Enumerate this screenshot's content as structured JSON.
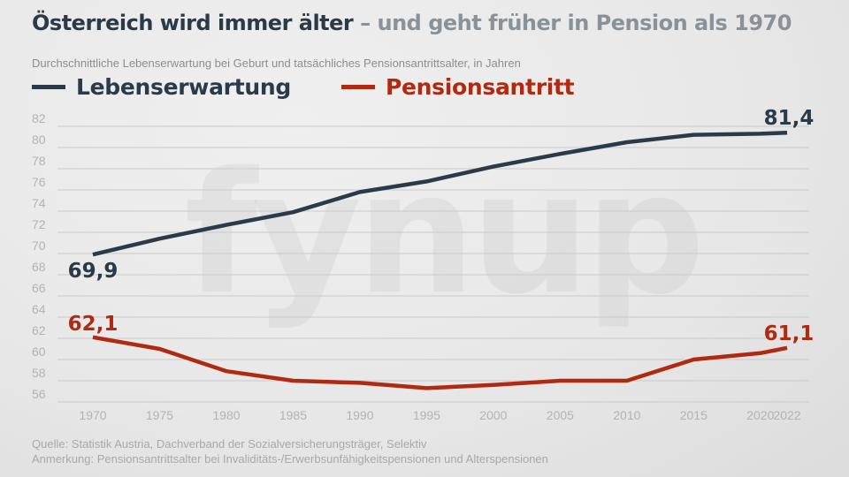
{
  "header": {
    "title_main": "Österreich wird immer älter",
    "title_sub": " – und geht früher in Pension als 1970",
    "subtitle": "Durchschnittliche Lebenserwartung bei Geburt und tatsächliches Pensionsantrittsalter, in Jahren"
  },
  "legend": [
    {
      "label": "Lebenserwartung",
      "color": "#2b3a48"
    },
    {
      "label": "Pensionsantritt",
      "color": "#b02a12"
    }
  ],
  "watermark": "fynup",
  "footer": {
    "source": "Quelle: Statistik Austria, Dachverband der Sozialversicherungsträger, Selektiv",
    "note": "Anmerkung: Pensionsantrittsalter bei Invaliditäts-/Erwerbsunfähigkeitspensionen und Alterspensionen"
  },
  "chart_data": {
    "type": "line",
    "title": "Österreich wird immer älter – und geht früher in Pension als 1970",
    "subtitle": "Durchschnittliche Lebenserwartung bei Geburt und tatsächliches Pensionsantrittsalter, in Jahren",
    "xlabel": "",
    "ylabel": "",
    "x": [
      1970,
      1975,
      1980,
      1985,
      1990,
      1995,
      2000,
      2005,
      2010,
      2015,
      2020,
      2022
    ],
    "x_tick_labels": [
      "1970",
      "1975",
      "1980",
      "1985",
      "1990",
      "1995",
      "2000",
      "2005",
      "2010",
      "2015",
      "2020",
      "2022"
    ],
    "ylim": [
      56,
      82
    ],
    "y_ticks": [
      82,
      80,
      78,
      76,
      74,
      72,
      70,
      68,
      66,
      64,
      62,
      60,
      58,
      56
    ],
    "y_tick_labels": [
      "82",
      "80",
      "78",
      "76",
      "74",
      "72",
      "70",
      "68",
      "66",
      "64",
      "62",
      "60",
      "58",
      "56"
    ],
    "grid": true,
    "legend_position": "top-left",
    "series": [
      {
        "name": "Lebenserwartung",
        "color": "#2b3a48",
        "values": [
          69.9,
          71.4,
          72.7,
          73.9,
          75.8,
          76.8,
          78.2,
          79.4,
          80.5,
          81.2,
          81.3,
          81.4
        ],
        "start_label": "69,9",
        "end_label": "81,4"
      },
      {
        "name": "Pensionsantritt",
        "color": "#b02a12",
        "values": [
          62.1,
          61.0,
          58.9,
          58.0,
          57.8,
          57.3,
          57.6,
          58.0,
          58.0,
          60.0,
          60.6,
          61.1
        ],
        "start_label": "62,1",
        "end_label": "61,1"
      }
    ]
  }
}
